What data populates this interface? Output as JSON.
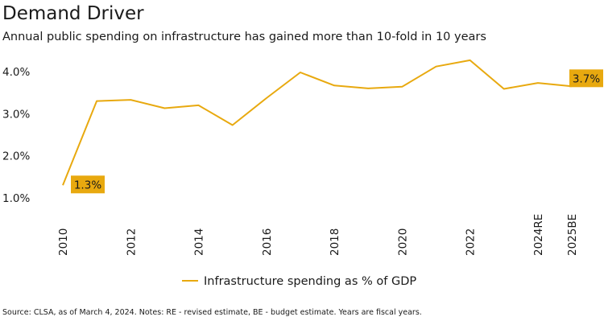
{
  "header": {
    "title": "Demand Driver",
    "subtitle": "Annual public spending on infrastructure has gained more than 10-fold in 10 years"
  },
  "footer": {
    "source": "Source: CLSA, as of March 4, 2024. Notes: RE - revised estimate, BE - budget estimate. Years are fiscal years."
  },
  "colors": {
    "series": "#E8A90F",
    "callout": "#E8A90F"
  },
  "chart_data": {
    "type": "line",
    "x": [
      "2010",
      "2011",
      "2012",
      "2013",
      "2014",
      "2015",
      "2016",
      "2017",
      "2018",
      "2019",
      "2020",
      "2021",
      "2022",
      "2023",
      "2024RE",
      "2025BE"
    ],
    "x_tick_labels": [
      "2010",
      "2012",
      "2014",
      "2016",
      "2018",
      "2020",
      "2022",
      "2024RE",
      "2025BE"
    ],
    "y_tick_labels": [
      "1.0%",
      "2.0%",
      "3.0%",
      "4.0%"
    ],
    "ylim": [
      1.0,
      4.0
    ],
    "grid": false,
    "legend": "bottom-center",
    "series": [
      {
        "name": "Infrastructure spending as % of GDP",
        "values": [
          1.3,
          3.3,
          3.33,
          3.13,
          3.2,
          2.73,
          3.37,
          3.98,
          3.67,
          3.6,
          3.64,
          4.12,
          4.27,
          3.59,
          3.73,
          3.65
        ]
      }
    ],
    "annotations": [
      {
        "index": 0,
        "label": "1.3%"
      },
      {
        "index": 15,
        "label": "3.7%"
      }
    ]
  }
}
